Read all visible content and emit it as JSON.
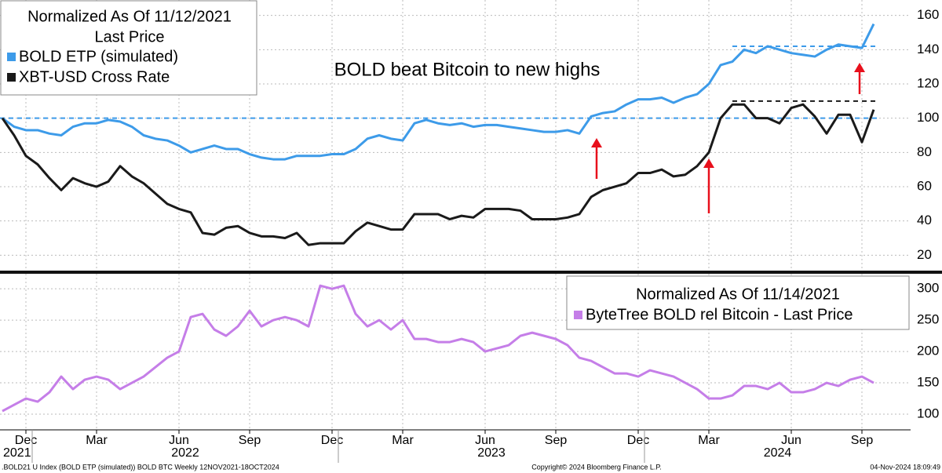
{
  "chart_data": [
    {
      "type": "line",
      "legend_title": "Normalized As Of 11/12/2021",
      "legend_subtitle": "Last Price",
      "annotation": "BOLD beat Bitcoin to new highs",
      "ylim": [
        11,
        169
      ],
      "yticks": [
        20,
        40,
        60,
        80,
        100,
        120,
        140,
        160
      ],
      "grid": true,
      "series": [
        {
          "name": "BOLD ETP (simulated)",
          "color": "#3d9be9",
          "values": [
            100,
            95,
            93,
            93,
            91,
            90,
            95,
            97,
            97,
            99,
            98,
            95,
            90,
            88,
            87,
            84,
            80,
            82,
            84,
            82,
            82,
            79,
            77,
            76,
            76,
            78,
            78,
            78,
            79,
            79,
            82,
            88,
            90,
            88,
            87,
            97,
            99,
            97,
            96,
            97,
            95,
            96,
            96,
            95,
            94,
            93,
            92,
            92,
            93,
            91,
            101,
            103,
            104,
            108,
            111,
            111,
            112,
            109,
            112,
            114,
            120,
            131,
            133,
            140,
            138,
            142,
            140,
            138,
            137,
            136,
            140,
            143,
            142,
            141,
            155
          ]
        },
        {
          "name": "XBT-USD Cross Rate",
          "color": "#1a1a1a",
          "values": [
            100,
            90,
            78,
            73,
            65,
            58,
            65,
            62,
            60,
            63,
            72,
            66,
            62,
            56,
            50,
            47,
            45,
            33,
            32,
            36,
            37,
            33,
            31,
            31,
            30,
            33,
            26,
            27,
            27,
            27,
            34,
            39,
            37,
            35,
            35,
            44,
            44,
            44,
            41,
            43,
            42,
            47,
            47,
            47,
            46,
            41,
            41,
            41,
            42,
            44,
            54,
            58,
            60,
            62,
            68,
            68,
            70,
            66,
            67,
            72,
            80,
            100,
            108,
            108,
            100,
            100,
            97,
            106,
            108,
            101,
            91,
            102,
            102,
            86,
            105
          ]
        }
      ],
      "reference_lines": [
        {
          "value": 100,
          "color": "#3d9be9"
        },
        {
          "value": 142,
          "color": "#3d9be9",
          "start": 62
        },
        {
          "value": 110,
          "color": "#1a1a1a",
          "start": 62
        }
      ]
    },
    {
      "type": "line",
      "legend_title": "Normalized As Of 11/14/2021",
      "ylim": [
        75,
        324
      ],
      "yticks": [
        100,
        150,
        200,
        250,
        300
      ],
      "grid": true,
      "categories": [
        null,
        null,
        "Dec",
        null,
        null,
        null,
        null,
        null,
        "Mar",
        null,
        null,
        null,
        null,
        null,
        null,
        "Jun",
        null,
        null,
        null,
        null,
        null,
        "Sep",
        null,
        null,
        null,
        null,
        null,
        null,
        "Dec",
        null,
        null,
        null,
        null,
        null,
        "Mar",
        null,
        null,
        null,
        null,
        null,
        null,
        "Jun",
        null,
        null,
        null,
        null,
        null,
        "Sep",
        null,
        null,
        null,
        null,
        null,
        null,
        "Dec",
        null,
        null,
        null,
        null,
        null,
        "Mar",
        null,
        null,
        null,
        null,
        null,
        null,
        "Jun",
        null,
        null,
        null,
        null,
        null,
        "Sep",
        null
      ],
      "year_groups": [
        {
          "label": "2021",
          "start": 0
        },
        {
          "label": "2022",
          "start": 3
        },
        {
          "label": "2023",
          "start": 29
        },
        {
          "label": "2024",
          "start": 55
        }
      ],
      "series": [
        {
          "name": "ByteTree BOLD rel Bitcoin - Last Price",
          "color": "#c57ee8",
          "values": [
            105,
            115,
            125,
            120,
            135,
            160,
            140,
            155,
            160,
            155,
            140,
            150,
            160,
            175,
            190,
            200,
            255,
            260,
            235,
            225,
            240,
            265,
            240,
            250,
            255,
            250,
            240,
            305,
            300,
            305,
            260,
            240,
            250,
            235,
            250,
            220,
            220,
            215,
            215,
            220,
            215,
            200,
            205,
            210,
            225,
            230,
            225,
            220,
            210,
            190,
            185,
            175,
            165,
            165,
            160,
            170,
            165,
            160,
            150,
            140,
            125,
            125,
            130,
            145,
            145,
            140,
            150,
            135,
            135,
            140,
            150,
            145,
            155,
            160,
            150
          ]
        }
      ]
    }
  ],
  "footer": {
    "left": ".BOLD21 U Index (BOLD ETP (simulated)) BOLD BTC  Weekly 12NOV2021-18OCT2024",
    "center": "Copyright© 2024 Bloomberg Finance L.P.",
    "right": "04-Nov-2024 18:09:49"
  }
}
